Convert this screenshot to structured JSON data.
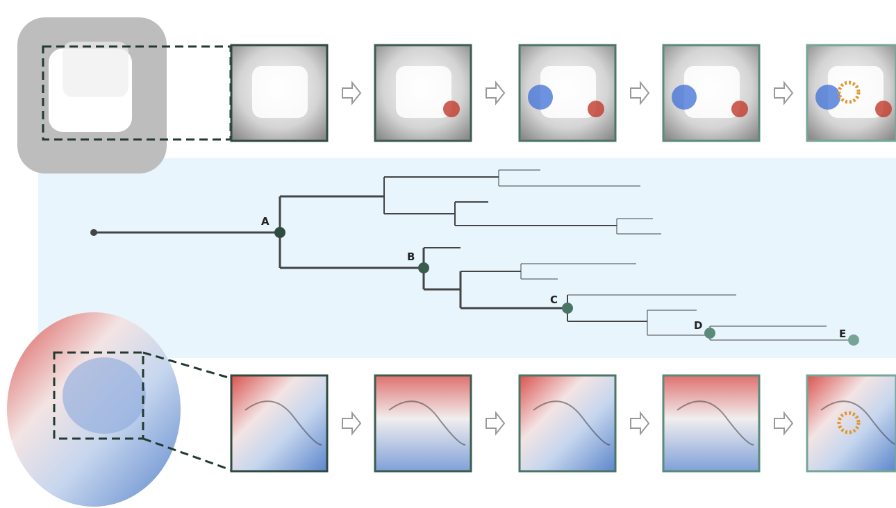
{
  "nodes": [
    {
      "label": "A"
    },
    {
      "label": "B"
    },
    {
      "label": "C"
    },
    {
      "label": "D"
    },
    {
      "label": "E"
    }
  ]
}
